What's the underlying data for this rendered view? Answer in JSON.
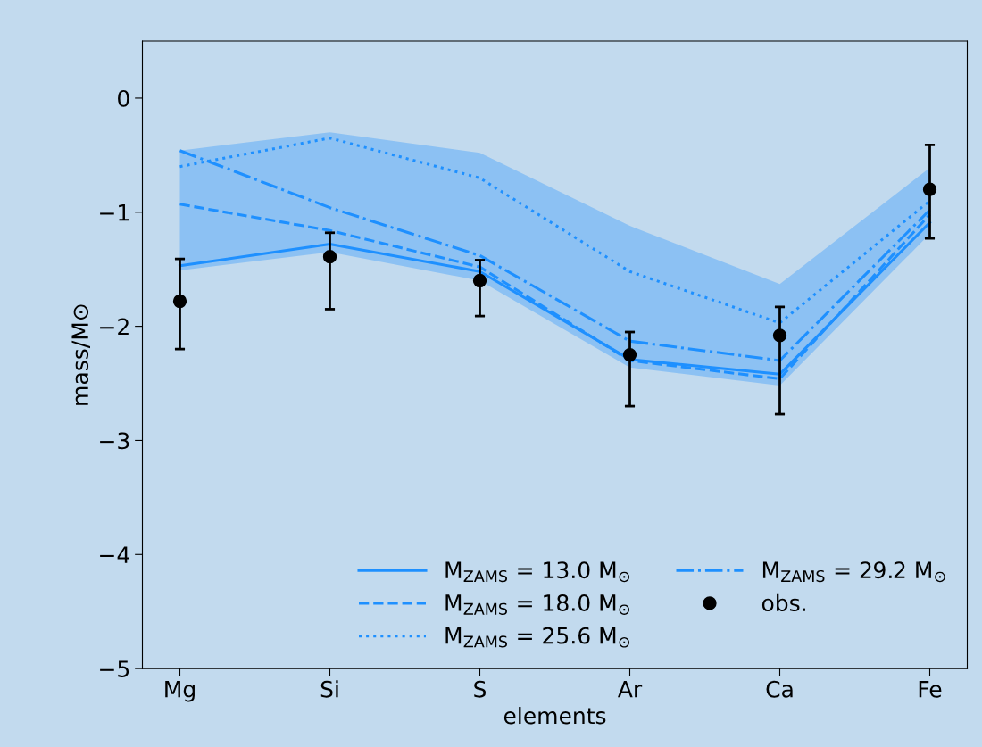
{
  "chart_data": {
    "type": "line",
    "xlabel": "elements",
    "ylabel": "mass/M⊙",
    "categories": [
      "Mg",
      "Si",
      "S",
      "Ar",
      "Ca",
      "Fe"
    ],
    "ylim": [
      -5,
      0.5
    ],
    "yticks": [
      {
        "value": 0,
        "label": "0"
      },
      {
        "value": -1,
        "label": "−1"
      },
      {
        "value": -2,
        "label": "−2"
      },
      {
        "value": -3,
        "label": "−3"
      },
      {
        "value": -4,
        "label": "−4"
      },
      {
        "value": -5,
        "label": "−5"
      }
    ],
    "grid": false,
    "legend": "bottom right",
    "series": [
      {
        "name": "M$_{ZAMS}$ = 13.0 M$_{⊙}$",
        "color": "#1e90ff",
        "line_style": "solid",
        "values": [
          -1.47,
          -1.28,
          -1.52,
          -2.29,
          -2.42,
          -1.09
        ],
        "lower": [
          -1.51,
          -1.35,
          -1.6,
          -2.36,
          -2.52,
          -1.19
        ],
        "upper": [
          -0.46,
          -0.3,
          -0.48,
          -1.12,
          -1.63,
          -0.61
        ]
      },
      {
        "name": "M$_{ZAMS}$ = 18.0 M$_{⊙}$",
        "color": "#1e90ff",
        "line_style": "dashed",
        "values": [
          -0.93,
          -1.16,
          -1.48,
          -2.3,
          -2.46,
          -1.02
        ]
      },
      {
        "name": "M$_{ZAMS}$ = 25.6 M$_{⊙}$",
        "color": "#1e90ff",
        "line_style": "dotted",
        "values": [
          -0.6,
          -0.35,
          -0.7,
          -1.52,
          -1.97,
          -0.9
        ]
      },
      {
        "name": "M$_{ZAMS}$ = 29.2 M$_{⊙}$",
        "color": "#1e90ff",
        "line_style": "dashdot",
        "values": [
          -0.46,
          -0.96,
          -1.38,
          -2.13,
          -2.3,
          -0.98
        ]
      },
      {
        "name": "obs.",
        "type": "scatter",
        "marker": "circle",
        "color": "#000000",
        "values": [
          -1.78,
          -1.39,
          -1.6,
          -2.25,
          -2.08,
          -0.8
        ],
        "errors": [
          [
            -2.2,
            -1.41
          ],
          [
            -1.85,
            -1.18
          ],
          [
            -1.91,
            -1.42
          ],
          [
            -2.7,
            -2.05
          ],
          [
            -2.77,
            -1.83
          ],
          [
            -1.23,
            -0.41
          ]
        ]
      }
    ]
  }
}
